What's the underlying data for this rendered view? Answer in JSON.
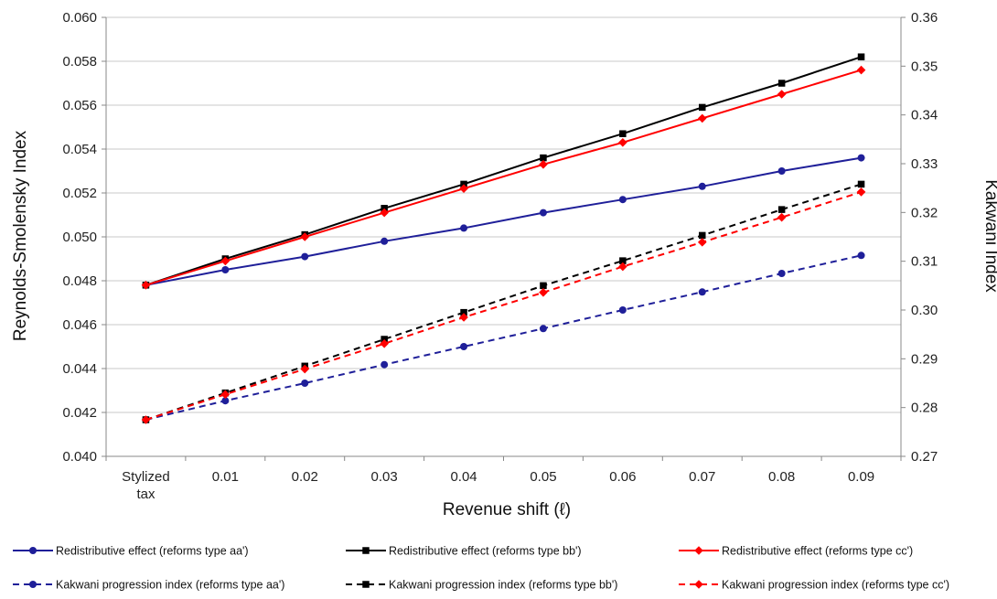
{
  "chart_data": {
    "type": "line",
    "categories": [
      "Stylized tax",
      "0.01",
      "0.02",
      "0.03",
      "0.04",
      "0.05",
      "0.06",
      "0.07",
      "0.08",
      "0.09"
    ],
    "xlabel": "Revenue shift (ℓ)",
    "ylabel_left": "Reynolds-Smolensky  Index",
    "ylabel_right": "Kakwani Index",
    "ylim_left": [
      0.04,
      0.06
    ],
    "ylim_right": [
      0.27,
      0.36
    ],
    "yticks_left": [
      "0.040",
      "0.042",
      "0.044",
      "0.046",
      "0.048",
      "0.050",
      "0.052",
      "0.054",
      "0.056",
      "0.058",
      "0.060"
    ],
    "yticks_right": [
      "0.27",
      "0.28",
      "0.29",
      "0.30",
      "0.31",
      "0.32",
      "0.33",
      "0.34",
      "0.35",
      "0.36"
    ],
    "grid": "horizontal",
    "legend_position": "bottom",
    "series": [
      {
        "name": "Redistributive effect (reforms type aa')",
        "axis": "left",
        "color": "#1f1f99",
        "marker": "circle",
        "dash": false,
        "values": [
          0.0478,
          0.0485,
          0.0491,
          0.0498,
          0.0504,
          0.0511,
          0.0517,
          0.0523,
          0.053,
          0.0536
        ]
      },
      {
        "name": "Redistributive effect (reforms type bb')",
        "axis": "left",
        "color": "#000000",
        "marker": "square",
        "dash": false,
        "values": [
          0.0478,
          0.049,
          0.0501,
          0.0513,
          0.0524,
          0.0536,
          0.0547,
          0.0559,
          0.057,
          0.0582
        ]
      },
      {
        "name": "Redistributive effect (reforms type cc')",
        "axis": "left",
        "color": "#ff0000",
        "marker": "diamond",
        "dash": false,
        "values": [
          0.0478,
          0.0489,
          0.05,
          0.0511,
          0.0522,
          0.0533,
          0.0543,
          0.0554,
          0.0565,
          0.0576
        ]
      },
      {
        "name": "Kakwani progression index (reforms type aa')",
        "axis": "right",
        "color": "#1f1f99",
        "marker": "circle",
        "dash": true,
        "values": [
          0.2775,
          0.2814,
          0.285,
          0.2888,
          0.2925,
          0.2962,
          0.3,
          0.3037,
          0.3075,
          0.3112
        ]
      },
      {
        "name": "Kakwani progression index (reforms type bb')",
        "axis": "right",
        "color": "#000000",
        "marker": "square",
        "dash": true,
        "values": [
          0.2775,
          0.283,
          0.2885,
          0.294,
          0.2995,
          0.305,
          0.3101,
          0.3153,
          0.3206,
          0.3258
        ]
      },
      {
        "name": "Kakwani progression index (reforms type cc')",
        "axis": "right",
        "color": "#ff0000",
        "marker": "diamond",
        "dash": true,
        "values": [
          0.2775,
          0.2827,
          0.2879,
          0.2931,
          0.2985,
          0.3036,
          0.3089,
          0.3139,
          0.319,
          0.3242
        ]
      }
    ]
  }
}
